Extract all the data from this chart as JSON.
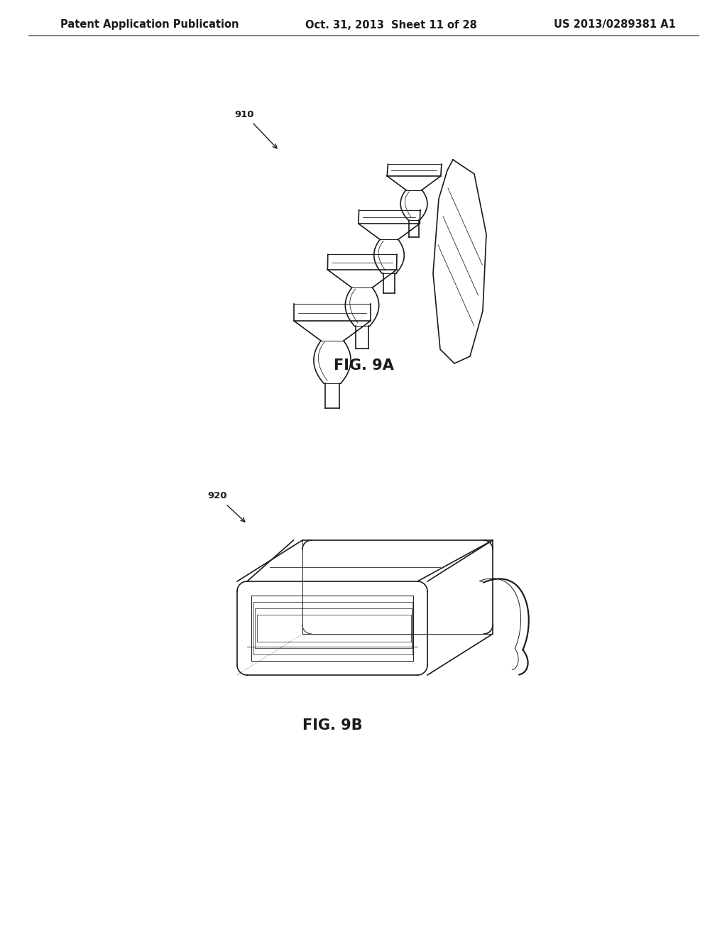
{
  "bg_color": "#ffffff",
  "header_left": "Patent Application Publication",
  "header_mid": "Oct. 31, 2013  Sheet 11 of 28",
  "header_right": "US 2013/0289381 A1",
  "header_fontsize": 10.5,
  "fig9a_label": "FIG. 9A",
  "fig9b_label": "FIG. 9B",
  "ref910_label": "910",
  "ref920_label": "920",
  "line_color": "#1a1a1a",
  "line_width": 1.2,
  "thin_line": 0.7
}
